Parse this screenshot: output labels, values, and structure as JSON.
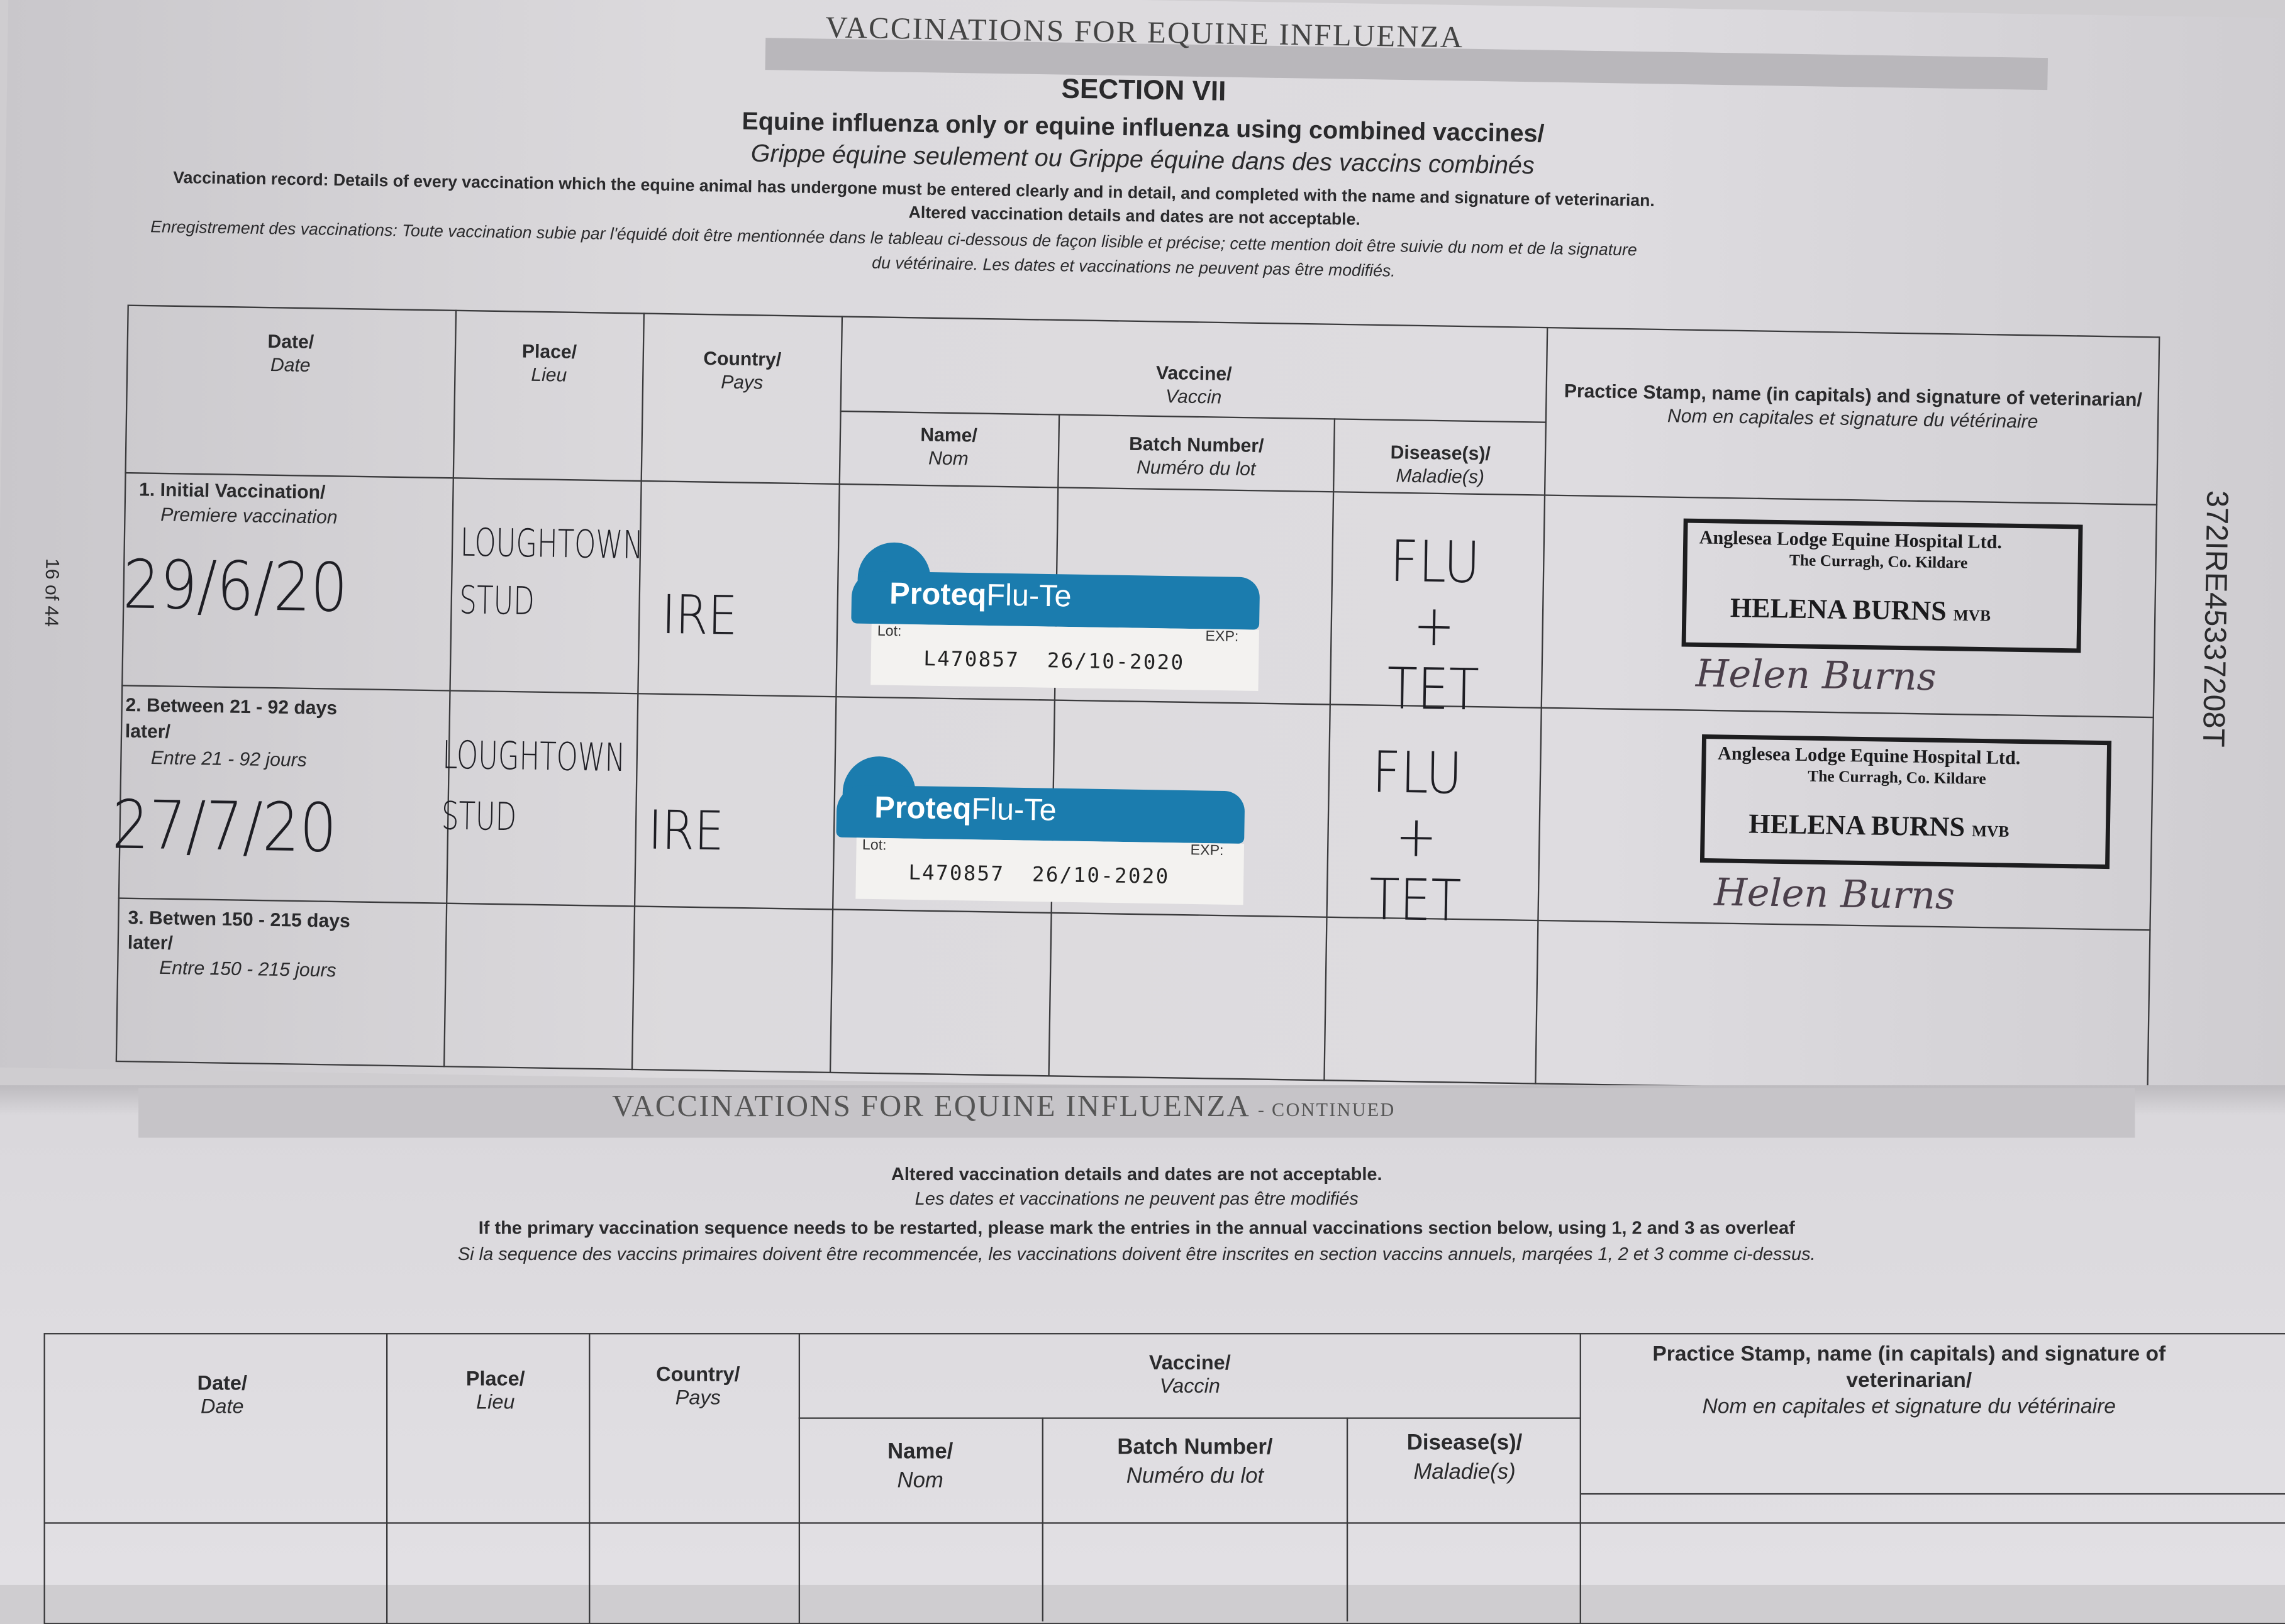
{
  "section": {
    "title": "VACCINATIONS FOR EQUINE INFLUENZA",
    "subtitle": "SECTION VII",
    "heading_en": "Equine influenza only or equine influenza using combined vaccines/",
    "heading_fr": "Grippe équine seulement ou Grippe équine dans des vaccins combinés",
    "note_en": "Vaccination record: Details of every vaccination which the equine animal has undergone must be entered clearly and in detail, and completed with the name and signature of veterinarian.",
    "note_en2": "Altered vaccination details and dates are not acceptable.",
    "note_fr": "Enregistrement des vaccinations: Toute vaccination subie par l'équidé doit être mentionnée dans le tableau ci-dessous de façon lisible et précise; cette mention doit être suivie du nom et de la signature",
    "note_fr2": "du vétérinaire. Les dates et vaccinations ne peuvent pas être modifiés.",
    "page_number": "16 of 44",
    "passport_id": "372IRE45337208T"
  },
  "headers": {
    "date": "Date/",
    "date_fr": "Date",
    "place": "Place/",
    "place_fr": "Lieu",
    "country": "Country/",
    "country_fr": "Pays",
    "vaccine": "Vaccine/",
    "vaccine_fr": "Vaccin",
    "name": "Name/",
    "name_fr": "Nom",
    "batch": "Batch Number/",
    "batch_fr": "Numéro du lot",
    "disease": "Disease(s)/",
    "disease_fr": "Maladie(s)",
    "stamp": "Practice Stamp, name (in capitals) and signature of veterinarian/",
    "stamp_fr": "Nom en capitales et signature du vétérinaire"
  },
  "rows": [
    {
      "label": "1. Initial Vaccination/",
      "label_fr": "Premiere vaccination",
      "date": "29/6/20",
      "place": "LOUGHTOWN STUD",
      "country": "IRE",
      "vaccine": {
        "brand": "Proteq",
        "product": "Flu-Te",
        "lot_label": "Lot:",
        "exp_label": "EXP:",
        "lot": "L470857",
        "exp": "26/10-2020"
      },
      "disease": "FLU + TET",
      "stamp": {
        "org": "Anglesea Lodge Equine Hospital Ltd.",
        "address": "The Curragh, Co. Kildare",
        "vet": "HELENA BURNS",
        "suffix": "MVB",
        "signature": "Helen Burns"
      }
    },
    {
      "label": "2. Between 21 - 92 days later/",
      "label_fr": "Entre 21 - 92 jours",
      "date": "27/7/20",
      "place": "LOUGHTOWN STUD",
      "country": "IRE",
      "vaccine": {
        "brand": "Proteq",
        "product": "Flu-Te",
        "lot_label": "Lot:",
        "exp_label": "EXP:",
        "lot": "L470857",
        "exp": "26/10-2020"
      },
      "disease": "FLU + TET",
      "stamp": {
        "org": "Anglesea Lodge Equine Hospital Ltd.",
        "address": "The Curragh, Co. Kildare",
        "vet": "HELENA BURNS",
        "suffix": "MVB",
        "signature": "Helen Burns"
      }
    },
    {
      "label": "3. Betwen 150 - 215 days later/",
      "label_fr": "Entre 150 - 215 jours"
    }
  ],
  "continued": {
    "title": "VACCINATIONS FOR EQUINE INFLUENZA",
    "title_suffix": "- CONTINUED",
    "note_en": "Altered vaccination details and dates are not acceptable.",
    "note_fr": "Les dates et vaccinations ne peuvent pas être modifiés",
    "restart_en": "If the primary vaccination sequence needs to be restarted, please mark the entries in the annual vaccinations section below, using 1, 2 and 3 as overleaf",
    "restart_fr": "Si la sequence des vaccins primaires doivent être recommencée, les vaccinations doivent être inscrites en section vaccins annuels, marqées 1, 2 et 3 comme ci-dessus."
  },
  "colors": {
    "label_blue": "#1b7cae",
    "ink": "#2a2a2c"
  }
}
